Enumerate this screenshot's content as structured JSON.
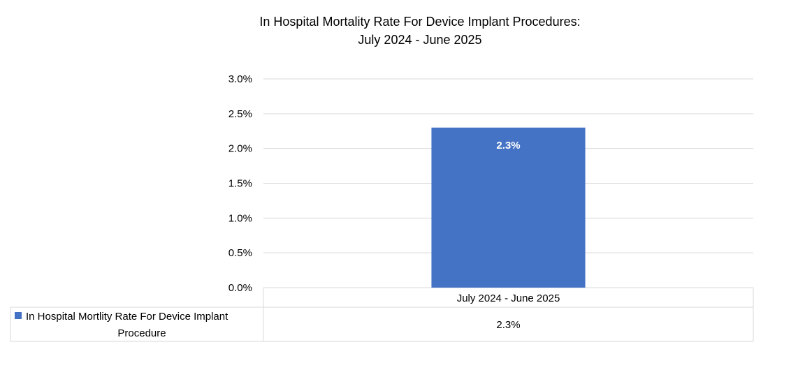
{
  "chart_data": {
    "type": "bar",
    "title_line1": "In Hospital Mortality Rate For Device Implant Procedures:",
    "title_line2": "July 2024 - June 2025",
    "categories": [
      "July 2024 - June 2025"
    ],
    "series": [
      {
        "name_line1": "In Hospital Mortlity Rate For Device Implant",
        "name_line2": "Procedure",
        "values": [
          2.3
        ],
        "value_labels": [
          "2.3%"
        ],
        "color": "#4472C4"
      }
    ],
    "yticks": [
      "0.0%",
      "0.5%",
      "1.0%",
      "1.5%",
      "2.0%",
      "2.5%",
      "3.0%"
    ],
    "ylim": [
      0,
      3.0
    ],
    "grid": true,
    "data_table": true,
    "gridline_color": "#D9D9D9"
  }
}
